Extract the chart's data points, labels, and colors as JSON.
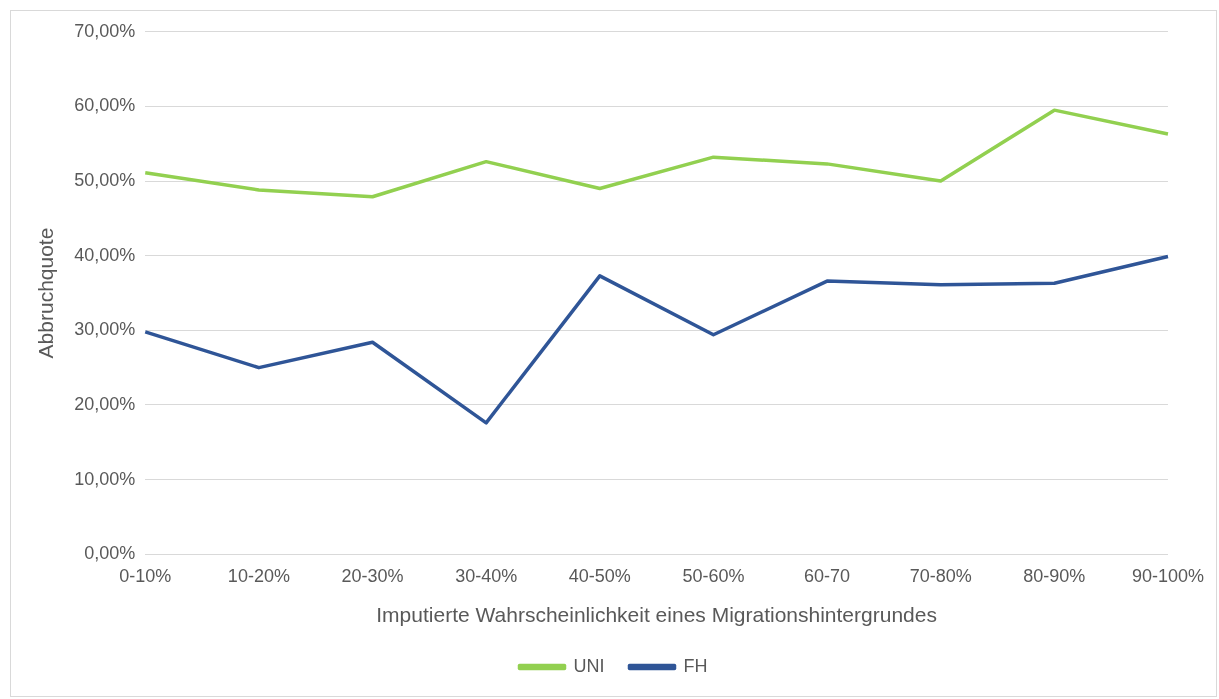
{
  "chart_data": {
    "type": "line",
    "xlabel": "Imputierte Wahrscheinlichkeit eines Migrationshintergrundes",
    "ylabel": "Abbruchquote",
    "categories": [
      "0-10%",
      "10-20%",
      "20-30%",
      "30-40%",
      "40-50%",
      "50-60%",
      "60-70",
      "70-80%",
      "80-90%",
      "90-100%"
    ],
    "series": [
      {
        "name": "UNI",
        "color": "#92d050",
        "values": [
          51.1,
          48.8,
          47.9,
          52.6,
          49.0,
          53.2,
          52.3,
          50.0,
          59.5,
          56.3
        ]
      },
      {
        "name": "FH",
        "color": "#2f5597",
        "values": [
          29.8,
          25.0,
          28.4,
          17.6,
          37.3,
          29.4,
          36.6,
          36.1,
          36.3,
          39.9
        ]
      }
    ],
    "ylim": [
      0,
      70
    ],
    "yticks": [
      {
        "value": 0,
        "label": "0,00%"
      },
      {
        "value": 10,
        "label": "10,00%"
      },
      {
        "value": 20,
        "label": "20,00%"
      },
      {
        "value": 30,
        "label": "30,00%"
      },
      {
        "value": 40,
        "label": "40,00%"
      },
      {
        "value": 50,
        "label": "50,00%"
      },
      {
        "value": 60,
        "label": "60,00%"
      },
      {
        "value": 70,
        "label": "70,00%"
      }
    ],
    "grid": "y",
    "legend": "bottom",
    "marker": "none",
    "line_style": "solid"
  }
}
